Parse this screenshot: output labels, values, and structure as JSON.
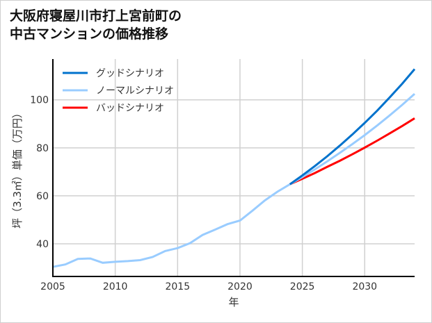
{
  "chart_data": {
    "type": "line",
    "title": [
      "大阪府寝屋川市打上宮前町の",
      "中古マンションの価格推移"
    ],
    "xlabel": "年",
    "ylabel": "坪（3.3㎡）単価（万円）",
    "xlim": [
      2005,
      2034
    ],
    "ylim": [
      26.4,
      117
    ],
    "xticks": [
      2005,
      2010,
      2015,
      2020,
      2025,
      2030
    ],
    "yticks": [
      40,
      60,
      80,
      100
    ],
    "grid": true,
    "legend_position": "top-left",
    "historical": {
      "x": [
        2005,
        2006,
        2007,
        2008,
        2009,
        2010,
        2011,
        2012,
        2013,
        2014,
        2015,
        2016,
        2017,
        2018,
        2019,
        2020,
        2021,
        2022,
        2023,
        2024
      ],
      "values": [
        30.4,
        31.4,
        33.7,
        33.9,
        32.1,
        32.5,
        32.8,
        33.2,
        34.5,
        37.0,
        38.2,
        40.3,
        43.7,
        45.9,
        48.2,
        49.7,
        53.8,
        58.1,
        61.7,
        64.8
      ],
      "color": "#99ccff"
    },
    "series": [
      {
        "name": "グッドシナリオ",
        "color": "#0072cc",
        "x": [
          2024,
          2025,
          2026,
          2027,
          2028,
          2029,
          2030,
          2031,
          2032,
          2033,
          2034
        ],
        "values": [
          64.8,
          68.5,
          72.4,
          76.5,
          80.9,
          85.5,
          90.4,
          95.5,
          101.0,
          106.7,
          112.8
        ]
      },
      {
        "name": "ノーマルシナリオ",
        "color": "#99ccff",
        "x": [
          2024,
          2025,
          2026,
          2027,
          2028,
          2029,
          2030,
          2031,
          2032,
          2033,
          2034
        ],
        "values": [
          64.8,
          67.8,
          71.0,
          74.4,
          77.9,
          81.5,
          85.3,
          89.3,
          93.5,
          97.9,
          102.5
        ]
      },
      {
        "name": "バッドシナリオ",
        "color": "#ff0000",
        "x": [
          2024,
          2025,
          2026,
          2027,
          2028,
          2029,
          2030,
          2031,
          2032,
          2033,
          2034
        ],
        "values": [
          64.8,
          67.1,
          69.5,
          72.1,
          74.6,
          77.3,
          80.1,
          83.0,
          86.0,
          89.1,
          92.3
        ]
      }
    ]
  }
}
